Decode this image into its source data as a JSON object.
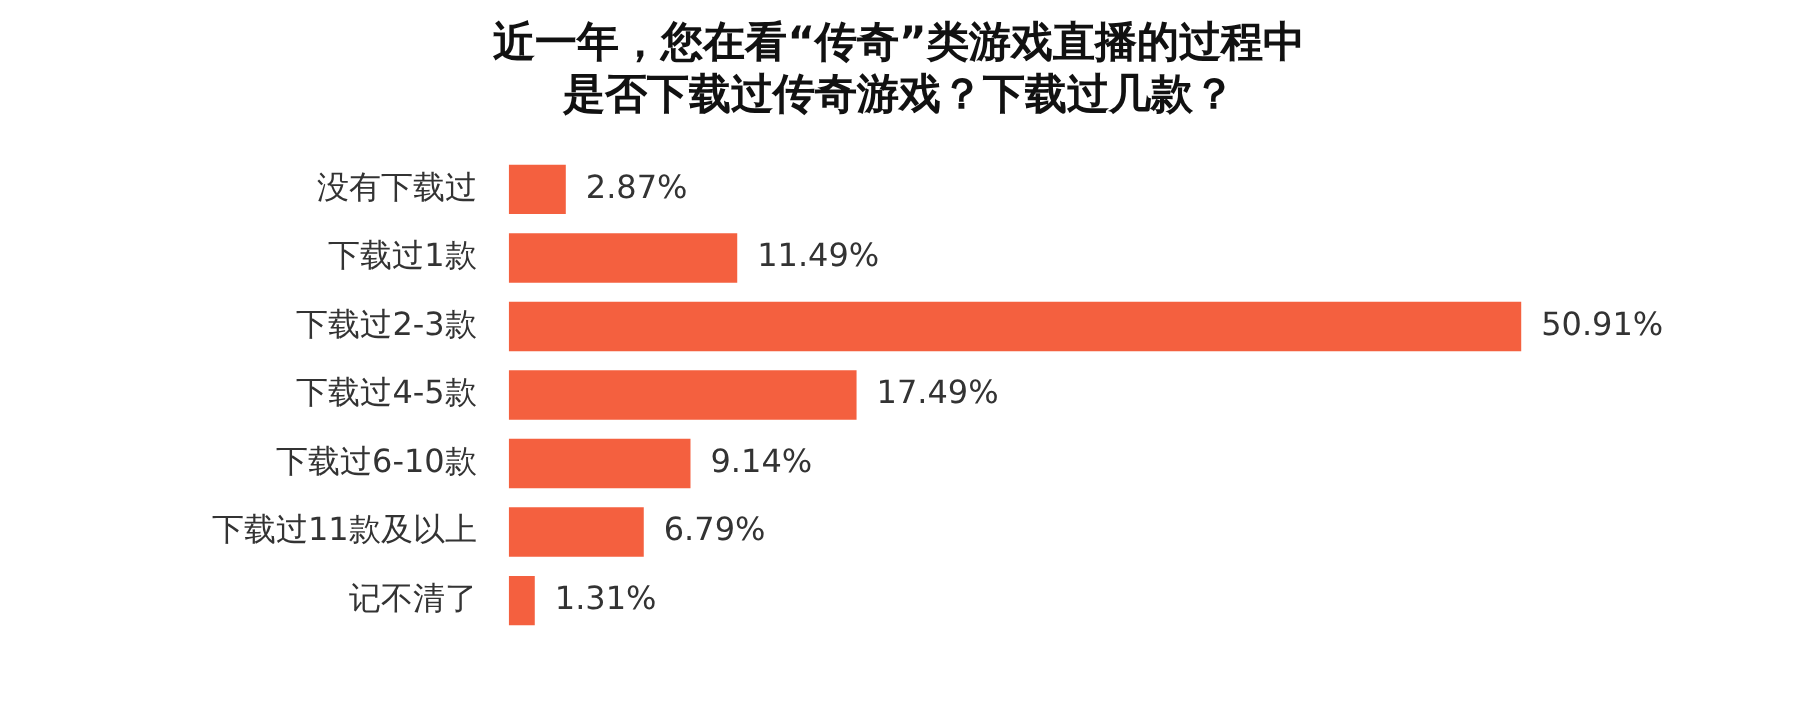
{
  "chart_data": {
    "type": "bar",
    "orientation": "horizontal",
    "title": "近一年，您在看“传奇”类游戏直播的过程中是否下载过传奇游戏？下载过几款？",
    "categories": [
      "没有下载过",
      "下载过1款",
      "下载过2-3款",
      "下载过4-5款",
      "下载过6-10款",
      "下载过11款及以上",
      "记不清了"
    ],
    "values": [
      2.87,
      11.49,
      50.91,
      17.49,
      9.14,
      6.79,
      1.31
    ],
    "value_labels": [
      "2.87%",
      "11.49%",
      "50.91%",
      "17.49%",
      "9.14%",
      "6.79%",
      "1.31%"
    ],
    "color": "#f4603f",
    "legend": false
  }
}
